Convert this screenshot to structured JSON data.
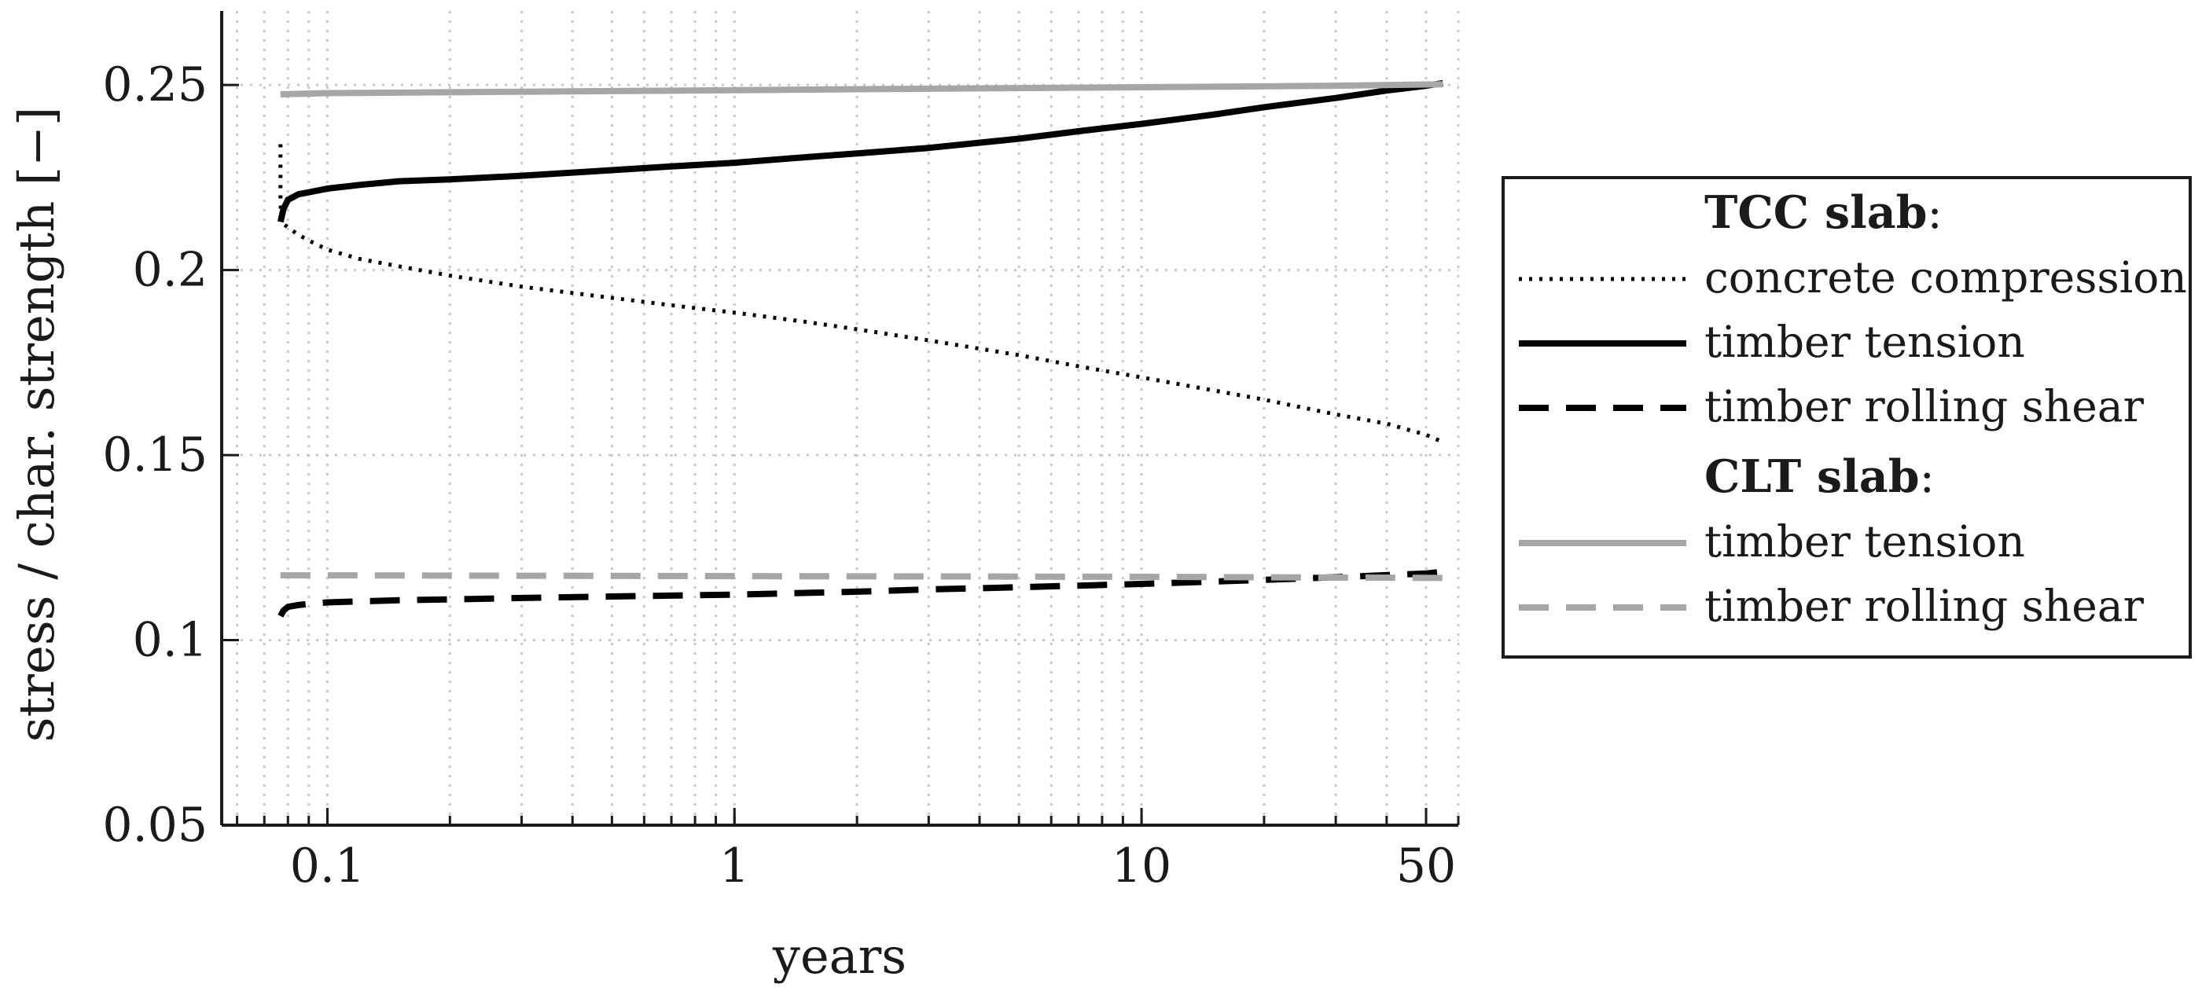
{
  "chart_data": {
    "type": "line",
    "title": "",
    "xlabel": "years",
    "ylabel": "stress / char. strength [−]",
    "x_scale": "log",
    "xlim": [
      0.055,
      60
    ],
    "ylim": [
      0.05,
      0.27
    ],
    "x_ticks": [
      0.1,
      1,
      10,
      50
    ],
    "x_tick_labels": [
      "0.1",
      "1",
      "10",
      "50"
    ],
    "y_ticks": [
      0.05,
      0.1,
      0.15,
      0.2,
      0.25
    ],
    "y_tick_labels": [
      "0.05",
      "0.1",
      "0.15",
      "0.2",
      "0.25"
    ],
    "grid": true,
    "legend_position": "right",
    "legend": {
      "groups": [
        {
          "heading": "TCC slab",
          "heading_suffix": ":",
          "entries": [
            "concrete compression",
            "timber tension",
            "timber rolling shear"
          ]
        },
        {
          "heading": "CLT slab",
          "heading_suffix": ":",
          "entries": [
            "timber tension",
            "timber rolling shear"
          ]
        }
      ]
    },
    "series": [
      {
        "name": "concrete compression",
        "group": "TCC slab",
        "color": "#000000",
        "dash": "dotted",
        "x": [
          0.0767,
          0.0767,
          0.0767,
          0.077,
          0.078,
          0.08,
          0.085,
          0.09,
          0.1,
          0.12,
          0.15,
          0.2,
          0.3,
          0.5,
          0.7,
          1,
          1.5,
          2,
          3,
          5,
          7,
          10,
          15,
          20,
          30,
          40,
          50,
          55
        ],
        "y": [
          0.234,
          0.226,
          0.219,
          0.214,
          0.2125,
          0.2115,
          0.2095,
          0.208,
          0.2055,
          0.203,
          0.201,
          0.1985,
          0.1955,
          0.1925,
          0.1905,
          0.1885,
          0.186,
          0.184,
          0.181,
          0.177,
          0.174,
          0.171,
          0.1675,
          0.165,
          0.161,
          0.1585,
          0.1555,
          0.1535
        ]
      },
      {
        "name": "timber tension",
        "group": "TCC slab",
        "color": "#000000",
        "dash": "solid",
        "x": [
          0.0767,
          0.078,
          0.08,
          0.085,
          0.09,
          0.1,
          0.12,
          0.15,
          0.2,
          0.3,
          0.5,
          0.7,
          1,
          1.5,
          2,
          3,
          5,
          7,
          10,
          15,
          20,
          30,
          40,
          50,
          55
        ],
        "y": [
          0.213,
          0.2165,
          0.219,
          0.2205,
          0.221,
          0.222,
          0.223,
          0.224,
          0.2245,
          0.2255,
          0.227,
          0.228,
          0.229,
          0.2305,
          0.2315,
          0.233,
          0.2355,
          0.2375,
          0.2395,
          0.242,
          0.244,
          0.2465,
          0.2485,
          0.2498,
          0.2505
        ]
      },
      {
        "name": "timber rolling shear",
        "group": "TCC slab",
        "color": "#000000",
        "dash": "dashed",
        "x": [
          0.0767,
          0.078,
          0.08,
          0.085,
          0.09,
          0.1,
          0.15,
          0.2,
          0.3,
          0.5,
          1,
          2,
          3,
          5,
          10,
          20,
          30,
          50,
          55
        ],
        "y": [
          0.1065,
          0.108,
          0.109,
          0.1095,
          0.1098,
          0.1102,
          0.1108,
          0.111,
          0.1114,
          0.1118,
          0.1123,
          0.1131,
          0.1137,
          0.1143,
          0.1152,
          0.1163,
          0.117,
          0.118,
          0.1185
        ]
      },
      {
        "name": "timber tension",
        "group": "CLT slab",
        "color": "#a6a6a6",
        "dash": "solid",
        "x": [
          0.0767,
          0.1,
          0.3,
          1,
          3,
          10,
          30,
          55
        ],
        "y": [
          0.2475,
          0.2478,
          0.2482,
          0.2486,
          0.249,
          0.2494,
          0.2498,
          0.2502
        ]
      },
      {
        "name": "timber rolling shear",
        "group": "CLT slab",
        "color": "#a6a6a6",
        "dash": "dashed",
        "x": [
          0.0767,
          0.1,
          1,
          10,
          55
        ],
        "y": [
          0.1175,
          0.1175,
          0.1173,
          0.1171,
          0.1168
        ]
      }
    ]
  }
}
